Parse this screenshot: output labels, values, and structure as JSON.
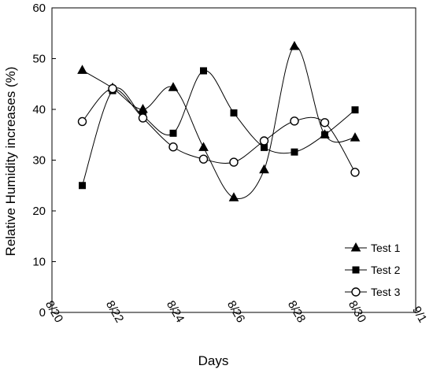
{
  "chart_data": {
    "type": "line",
    "title": "",
    "xlabel": "Days",
    "ylabel": "Relative Humidity increases (%)",
    "x_ticks": [
      "8/20",
      "8/22",
      "8/24",
      "8/26",
      "8/28",
      "8/30",
      "9/1"
    ],
    "xlim": [
      "8/20",
      "9/1"
    ],
    "ylim": [
      0,
      60
    ],
    "y_ticks": [
      0,
      10,
      20,
      30,
      40,
      50,
      60
    ],
    "grid": false,
    "legend_position": "bottom-right",
    "x": [
      "8/21",
      "8/22",
      "8/23",
      "8/24",
      "8/25",
      "8/26",
      "8/27",
      "8/28",
      "8/29",
      "8/30"
    ],
    "series": [
      {
        "name": "Test 1",
        "marker": "filled-triangle",
        "values": [
          47.7,
          44.2,
          40.0,
          44.3,
          32.5,
          22.6,
          28.1,
          52.4,
          35.0,
          34.4
        ]
      },
      {
        "name": "Test 2",
        "marker": "filled-square",
        "values": [
          25.0,
          43.7,
          38.7,
          35.3,
          47.6,
          39.3,
          32.5,
          31.6,
          35.0,
          39.9
        ]
      },
      {
        "name": "Test 3",
        "marker": "open-circle",
        "values": [
          37.6,
          44.1,
          38.3,
          32.6,
          30.2,
          29.6,
          33.8,
          37.7,
          37.4,
          27.6
        ]
      }
    ]
  }
}
